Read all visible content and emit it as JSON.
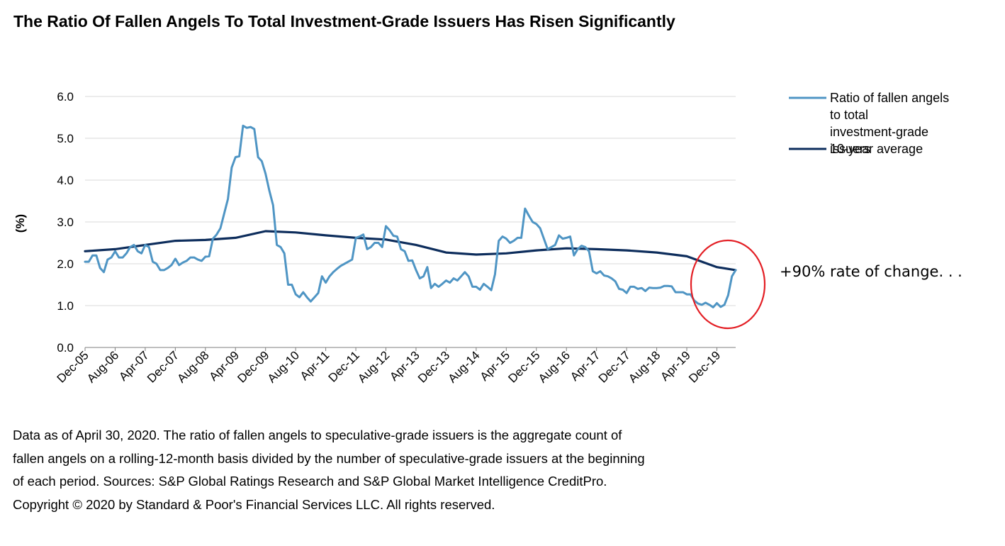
{
  "title": "The Ratio Of Fallen Angels To Total Investment-Grade Issuers Has Risen Significantly",
  "notes": [
    "Data as of April 30, 2020. The ratio of fallen angels to speculative-grade issuers is the aggregate count of",
    "fallen angels on a rolling-12-month basis divided by the number of speculative-grade issuers at the beginning",
    "of each period. Sources: S&P Global Ratings Research and S&P Global Market Intelligence CreditPro.",
    "Copyright © 2020 by Standard & Poor's Financial Services LLC. All rights reserved."
  ],
  "annotation": {
    "text": "+90% rate of change. . .",
    "circle_color": "#e31e24"
  },
  "chart_data": {
    "type": "line",
    "ylabel": "(%)",
    "xlabel": "",
    "ylim": [
      0,
      6
    ],
    "yticks": [
      "0.0",
      "1.0",
      "2.0",
      "3.0",
      "4.0",
      "5.0",
      "6.0"
    ],
    "grid": true,
    "legend_position": "top-right",
    "x_tick_labels": [
      "Dec-05",
      "Aug-06",
      "Apr-07",
      "Dec-07",
      "Aug-08",
      "Apr-09",
      "Dec-09",
      "Aug-10",
      "Apr-11",
      "Dec-11",
      "Aug-12",
      "Apr-13",
      "Dec-13",
      "Aug-14",
      "Apr-15",
      "Dec-15",
      "Aug-16",
      "Apr-17",
      "Dec-17",
      "Aug-18",
      "Apr-19",
      "Dec-19"
    ],
    "x_tick_step_months": 8,
    "series": [
      {
        "name": "Ratio of fallen angels to total investment-grade issuers",
        "color": "#4f95c4",
        "points": [
          [
            "Dec-05",
            2.05
          ],
          [
            "Jan-06",
            2.05
          ],
          [
            "Feb-06",
            2.2
          ],
          [
            "Mar-06",
            2.2
          ],
          [
            "Apr-06",
            1.9
          ],
          [
            "May-06",
            1.8
          ],
          [
            "Jun-06",
            2.1
          ],
          [
            "Jul-06",
            2.15
          ],
          [
            "Aug-06",
            2.3
          ],
          [
            "Sep-06",
            2.15
          ],
          [
            "Oct-06",
            2.15
          ],
          [
            "Nov-06",
            2.25
          ],
          [
            "Dec-06",
            2.4
          ],
          [
            "Jan-07",
            2.45
          ],
          [
            "Feb-07",
            2.3
          ],
          [
            "Mar-07",
            2.25
          ],
          [
            "Apr-07",
            2.45
          ],
          [
            "May-07",
            2.4
          ],
          [
            "Jun-07",
            2.05
          ],
          [
            "Jul-07",
            2.0
          ],
          [
            "Aug-07",
            1.85
          ],
          [
            "Sep-07",
            1.85
          ],
          [
            "Oct-07",
            1.9
          ],
          [
            "Nov-07",
            1.97
          ],
          [
            "Dec-07",
            2.12
          ],
          [
            "Jan-08",
            1.97
          ],
          [
            "Feb-08",
            2.03
          ],
          [
            "Mar-08",
            2.07
          ],
          [
            "Apr-08",
            2.15
          ],
          [
            "May-08",
            2.15
          ],
          [
            "Jun-08",
            2.1
          ],
          [
            "Jul-08",
            2.07
          ],
          [
            "Aug-08",
            2.17
          ],
          [
            "Sep-08",
            2.18
          ],
          [
            "Oct-08",
            2.6
          ],
          [
            "Nov-08",
            2.7
          ],
          [
            "Dec-08",
            2.85
          ],
          [
            "Jan-09",
            3.2
          ],
          [
            "Feb-09",
            3.55
          ],
          [
            "Mar-09",
            4.3
          ],
          [
            "Apr-09",
            4.55
          ],
          [
            "May-09",
            4.57
          ],
          [
            "Jun-09",
            5.3
          ],
          [
            "Jul-09",
            5.25
          ],
          [
            "Aug-09",
            5.27
          ],
          [
            "Sep-09",
            5.22
          ],
          [
            "Oct-09",
            4.55
          ],
          [
            "Nov-09",
            4.45
          ],
          [
            "Dec-09",
            4.15
          ],
          [
            "Jan-10",
            3.75
          ],
          [
            "Feb-10",
            3.4
          ],
          [
            "Mar-10",
            2.45
          ],
          [
            "Apr-10",
            2.4
          ],
          [
            "May-10",
            2.25
          ],
          [
            "Jun-10",
            1.5
          ],
          [
            "Jul-10",
            1.5
          ],
          [
            "Aug-10",
            1.27
          ],
          [
            "Sep-10",
            1.2
          ],
          [
            "Oct-10",
            1.32
          ],
          [
            "Nov-10",
            1.2
          ],
          [
            "Dec-10",
            1.1
          ],
          [
            "Jan-11",
            1.2
          ],
          [
            "Feb-11",
            1.3
          ],
          [
            "Mar-11",
            1.7
          ],
          [
            "Apr-11",
            1.55
          ],
          [
            "May-11",
            1.7
          ],
          [
            "Jun-11",
            1.8
          ],
          [
            "Jul-11",
            1.88
          ],
          [
            "Aug-11",
            1.95
          ],
          [
            "Sep-11",
            2.0
          ],
          [
            "Oct-11",
            2.05
          ],
          [
            "Nov-11",
            2.1
          ],
          [
            "Dec-11",
            2.62
          ],
          [
            "Jan-12",
            2.65
          ],
          [
            "Feb-12",
            2.7
          ],
          [
            "Mar-12",
            2.35
          ],
          [
            "Apr-12",
            2.4
          ],
          [
            "May-12",
            2.5
          ],
          [
            "Jun-12",
            2.5
          ],
          [
            "Jul-12",
            2.4
          ],
          [
            "Aug-12",
            2.9
          ],
          [
            "Sep-12",
            2.8
          ],
          [
            "Oct-12",
            2.67
          ],
          [
            "Nov-12",
            2.65
          ],
          [
            "Dec-12",
            2.35
          ],
          [
            "Jan-13",
            2.3
          ],
          [
            "Feb-13",
            2.07
          ],
          [
            "Mar-13",
            2.08
          ],
          [
            "Apr-13",
            1.85
          ],
          [
            "May-13",
            1.65
          ],
          [
            "Jun-13",
            1.7
          ],
          [
            "Jul-13",
            1.92
          ],
          [
            "Aug-13",
            1.42
          ],
          [
            "Sep-13",
            1.52
          ],
          [
            "Oct-13",
            1.45
          ],
          [
            "Nov-13",
            1.52
          ],
          [
            "Dec-13",
            1.6
          ],
          [
            "Jan-14",
            1.55
          ],
          [
            "Feb-14",
            1.65
          ],
          [
            "Mar-14",
            1.6
          ],
          [
            "Apr-14",
            1.7
          ],
          [
            "May-14",
            1.8
          ],
          [
            "Jun-14",
            1.7
          ],
          [
            "Jul-14",
            1.45
          ],
          [
            "Aug-14",
            1.45
          ],
          [
            "Sep-14",
            1.38
          ],
          [
            "Oct-14",
            1.52
          ],
          [
            "Nov-14",
            1.45
          ],
          [
            "Dec-14",
            1.37
          ],
          [
            "Jan-15",
            1.75
          ],
          [
            "Feb-15",
            2.55
          ],
          [
            "Mar-15",
            2.65
          ],
          [
            "Apr-15",
            2.6
          ],
          [
            "May-15",
            2.5
          ],
          [
            "Jun-15",
            2.55
          ],
          [
            "Jul-15",
            2.62
          ],
          [
            "Aug-15",
            2.62
          ],
          [
            "Sep-15",
            3.32
          ],
          [
            "Oct-15",
            3.15
          ],
          [
            "Nov-15",
            3.0
          ],
          [
            "Dec-15",
            2.95
          ],
          [
            "Jan-16",
            2.85
          ],
          [
            "Feb-16",
            2.6
          ],
          [
            "Mar-16",
            2.35
          ],
          [
            "Apr-16",
            2.4
          ],
          [
            "May-16",
            2.45
          ],
          [
            "Jun-16",
            2.68
          ],
          [
            "Jul-16",
            2.6
          ],
          [
            "Aug-16",
            2.62
          ],
          [
            "Sep-16",
            2.65
          ],
          [
            "Oct-16",
            2.2
          ],
          [
            "Nov-16",
            2.35
          ],
          [
            "Dec-16",
            2.43
          ],
          [
            "Jan-17",
            2.4
          ],
          [
            "Feb-17",
            2.3
          ],
          [
            "Mar-17",
            1.82
          ],
          [
            "Apr-17",
            1.77
          ],
          [
            "May-17",
            1.82
          ],
          [
            "Jun-17",
            1.72
          ],
          [
            "Jul-17",
            1.7
          ],
          [
            "Aug-17",
            1.65
          ],
          [
            "Sep-17",
            1.58
          ],
          [
            "Oct-17",
            1.4
          ],
          [
            "Nov-17",
            1.38
          ],
          [
            "Dec-17",
            1.3
          ],
          [
            "Jan-18",
            1.45
          ],
          [
            "Feb-18",
            1.45
          ],
          [
            "Mar-18",
            1.4
          ],
          [
            "Apr-18",
            1.42
          ],
          [
            "May-18",
            1.35
          ],
          [
            "Jun-18",
            1.43
          ],
          [
            "Jul-18",
            1.42
          ],
          [
            "Aug-18",
            1.42
          ],
          [
            "Sep-18",
            1.43
          ],
          [
            "Oct-18",
            1.47
          ],
          [
            "Nov-18",
            1.47
          ],
          [
            "Dec-18",
            1.46
          ],
          [
            "Jan-19",
            1.32
          ],
          [
            "Feb-19",
            1.32
          ],
          [
            "Mar-19",
            1.32
          ],
          [
            "Apr-19",
            1.27
          ],
          [
            "May-19",
            1.27
          ],
          [
            "Jun-19",
            1.12
          ],
          [
            "Jul-19",
            1.05
          ],
          [
            "Aug-19",
            1.02
          ],
          [
            "Sep-19",
            1.07
          ],
          [
            "Oct-19",
            1.02
          ],
          [
            "Nov-19",
            0.96
          ],
          [
            "Dec-19",
            1.06
          ],
          [
            "Jan-20",
            0.97
          ],
          [
            "Feb-20",
            1.02
          ],
          [
            "Mar-20",
            1.25
          ],
          [
            "Apr-20",
            1.7
          ],
          [
            "May-20",
            1.85
          ]
        ]
      },
      {
        "name": "10-year average",
        "color": "#0d2d5c",
        "points": [
          [
            "Dec-05",
            2.3
          ],
          [
            "Aug-06",
            2.35
          ],
          [
            "Apr-07",
            2.45
          ],
          [
            "Dec-07",
            2.55
          ],
          [
            "Aug-08",
            2.57
          ],
          [
            "Apr-09",
            2.62
          ],
          [
            "Dec-09",
            2.78
          ],
          [
            "Aug-10",
            2.75
          ],
          [
            "Apr-11",
            2.68
          ],
          [
            "Dec-11",
            2.62
          ],
          [
            "Aug-12",
            2.58
          ],
          [
            "Apr-13",
            2.45
          ],
          [
            "Dec-13",
            2.27
          ],
          [
            "Aug-14",
            2.22
          ],
          [
            "Apr-15",
            2.25
          ],
          [
            "Dec-15",
            2.32
          ],
          [
            "Aug-16",
            2.37
          ],
          [
            "Apr-17",
            2.35
          ],
          [
            "Dec-17",
            2.32
          ],
          [
            "Aug-18",
            2.27
          ],
          [
            "Apr-19",
            2.18
          ],
          [
            "Dec-19",
            1.92
          ],
          [
            "May-20",
            1.85
          ]
        ]
      }
    ]
  }
}
